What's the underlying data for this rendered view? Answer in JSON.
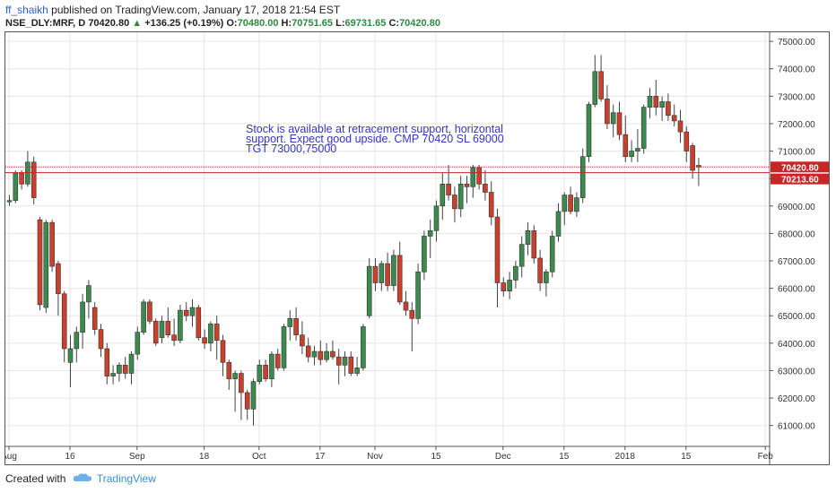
{
  "publish": {
    "author": "ff_shaikh",
    "text": "published on TradingView.com, January 17, 2018 21:54 EST"
  },
  "symbol": {
    "name": "NSE_DLY:MRF, D",
    "price": "70420.80",
    "change": "+136.25 (+0.19%)",
    "o_label": "O:",
    "o": "70480.00",
    "h_label": "H:",
    "h": "70751.65",
    "l_label": "L:",
    "l": "69731.65",
    "c_label": "C:",
    "c": "70420.80"
  },
  "footer": {
    "created_with": "Created with",
    "brand": "TradingView"
  },
  "colors": {
    "up": "#3d8a4e",
    "down": "#c9402c",
    "grid": "#e6e6e6",
    "annotation": "#3535c8",
    "price_line": "#c62828"
  },
  "chart_data": {
    "type": "candlestick",
    "ylim": [
      60500,
      75200
    ],
    "y_ticks": [
      "75000.00",
      "74000.00",
      "73000.00",
      "72000.00",
      "71000.00",
      "70000.00",
      "69000.00",
      "68000.00",
      "67000.00",
      "66000.00",
      "65000.00",
      "64000.00",
      "63000.00",
      "62000.00",
      "61000.00"
    ],
    "x_ticks": [
      {
        "label": "Aug",
        "bar": 0
      },
      {
        "label": "16",
        "bar": 10
      },
      {
        "label": "Sep",
        "bar": 21
      },
      {
        "label": "18",
        "bar": 32
      },
      {
        "label": "Oct",
        "bar": 41
      },
      {
        "label": "17",
        "bar": 51
      },
      {
        "label": "Nov",
        "bar": 60
      },
      {
        "label": "15",
        "bar": 70
      },
      {
        "label": "Dec",
        "bar": 81
      },
      {
        "label": "15",
        "bar": 91
      },
      {
        "label": "2018",
        "bar": 101
      },
      {
        "label": "15",
        "bar": 111
      },
      {
        "label": "Feb",
        "bar": 124
      }
    ],
    "x_bars_total": 126,
    "annotation": "Stock is available at retracement support, horizontal support. Expect good upside. CMP 70420 SL 69000 TGT 73000,75000",
    "price_tags": [
      {
        "label": "70420.80",
        "value": 70420.8
      },
      {
        "label": "70213.60",
        "value": 70213.6
      }
    ],
    "candles": [
      [
        69150,
        69400,
        69000,
        69200
      ],
      [
        69200,
        70300,
        69100,
        70200
      ],
      [
        70200,
        70300,
        69600,
        69800
      ],
      [
        69800,
        71000,
        69700,
        70600
      ],
      [
        70600,
        70800,
        69050,
        69300
      ],
      [
        68500,
        68600,
        65200,
        65400
      ],
      [
        65300,
        68500,
        65100,
        68400
      ],
      [
        68400,
        68500,
        66600,
        66800
      ],
      [
        66900,
        67000,
        65000,
        65800
      ],
      [
        65800,
        65900,
        63300,
        63800
      ],
      [
        63300,
        64300,
        62400,
        63800
      ],
      [
        63800,
        64600,
        63300,
        64400
      ],
      [
        64400,
        65800,
        63800,
        65500
      ],
      [
        65500,
        66300,
        64900,
        66100
      ],
      [
        65300,
        65500,
        64300,
        64500
      ],
      [
        64500,
        64700,
        63500,
        63800
      ],
      [
        63800,
        64000,
        62500,
        62800
      ],
      [
        62800,
        63200,
        62500,
        62900
      ],
      [
        62900,
        63300,
        62600,
        63200
      ],
      [
        63200,
        63500,
        62700,
        62900
      ],
      [
        62900,
        63700,
        62500,
        63600
      ],
      [
        63600,
        64600,
        63400,
        64400
      ],
      [
        64400,
        65600,
        64300,
        65500
      ],
      [
        65500,
        65600,
        64700,
        64800
      ],
      [
        64800,
        64900,
        63900,
        64000
      ],
      [
        64200,
        65000,
        64000,
        64800
      ],
      [
        64800,
        65300,
        64200,
        64300
      ],
      [
        64300,
        64900,
        63900,
        64100
      ],
      [
        64100,
        65400,
        64000,
        65200
      ],
      [
        65200,
        65500,
        64800,
        65000
      ],
      [
        65000,
        65600,
        64600,
        65300
      ],
      [
        65300,
        65400,
        64100,
        64200
      ],
      [
        64200,
        64500,
        63800,
        64000
      ],
      [
        64000,
        64800,
        63700,
        64700
      ],
      [
        64700,
        65000,
        63400,
        64100
      ],
      [
        64100,
        64300,
        62800,
        63300
      ],
      [
        63300,
        63400,
        62300,
        62700
      ],
      [
        62700,
        63000,
        61500,
        62900
      ],
      [
        62900,
        63000,
        61200,
        62200
      ],
      [
        62200,
        62300,
        61200,
        61600
      ],
      [
        61600,
        62700,
        61000,
        62600
      ],
      [
        62600,
        63400,
        62500,
        63200
      ],
      [
        63200,
        63400,
        62600,
        62700
      ],
      [
        62700,
        63700,
        62400,
        63600
      ],
      [
        63600,
        63800,
        63000,
        63100
      ],
      [
        63100,
        64700,
        63000,
        64600
      ],
      [
        64600,
        65200,
        64100,
        64900
      ],
      [
        64900,
        65300,
        64100,
        64300
      ],
      [
        64300,
        64800,
        63600,
        63900
      ],
      [
        63900,
        64200,
        63300,
        63500
      ],
      [
        63500,
        63900,
        63200,
        63700
      ],
      [
        63700,
        64100,
        63200,
        63400
      ],
      [
        63400,
        64000,
        63300,
        63700
      ],
      [
        63700,
        64100,
        63400,
        63500
      ],
      [
        63500,
        63800,
        62500,
        63200
      ],
      [
        63200,
        63700,
        62800,
        63500
      ],
      [
        63500,
        63700,
        62800,
        62900
      ],
      [
        62900,
        63500,
        62800,
        63100
      ],
      [
        63100,
        64700,
        63000,
        64600
      ],
      [
        65000,
        67100,
        64900,
        66800
      ],
      [
        66800,
        67100,
        65900,
        66200
      ],
      [
        66200,
        67000,
        65900,
        66900
      ],
      [
        66900,
        67300,
        65900,
        66100
      ],
      [
        66100,
        67400,
        65900,
        67200
      ],
      [
        67200,
        67700,
        65400,
        65500
      ],
      [
        65500,
        65900,
        65000,
        65200
      ],
      [
        65200,
        65500,
        63700,
        64900
      ],
      [
        64900,
        66900,
        64700,
        66600
      ],
      [
        66600,
        68100,
        66300,
        67900
      ],
      [
        67900,
        68500,
        67100,
        68100
      ],
      [
        68100,
        69200,
        67700,
        69000
      ],
      [
        69000,
        70200,
        68500,
        69800
      ],
      [
        69800,
        70500,
        69200,
        69400
      ],
      [
        69400,
        69700,
        68400,
        68900
      ],
      [
        68900,
        70100,
        68600,
        69800
      ],
      [
        69800,
        70100,
        69100,
        69700
      ],
      [
        69700,
        70500,
        69300,
        70400
      ],
      [
        70400,
        70500,
        69600,
        69800
      ],
      [
        69800,
        70300,
        69200,
        69500
      ],
      [
        69500,
        69900,
        68300,
        68600
      ],
      [
        68600,
        68900,
        65300,
        66200
      ],
      [
        66200,
        66400,
        65700,
        65900
      ],
      [
        65900,
        66600,
        65600,
        66300
      ],
      [
        66300,
        67000,
        66000,
        66800
      ],
      [
        66800,
        67900,
        66400,
        67600
      ],
      [
        67600,
        68400,
        67200,
        68100
      ],
      [
        68100,
        68300,
        66900,
        67100
      ],
      [
        67100,
        67400,
        65900,
        66200
      ],
      [
        66200,
        66700,
        65700,
        66600
      ],
      [
        66600,
        68100,
        66400,
        67900
      ],
      [
        67900,
        69100,
        67700,
        68800
      ],
      [
        68800,
        69500,
        68300,
        69400
      ],
      [
        69400,
        69700,
        68700,
        68800
      ],
      [
        68800,
        69500,
        68600,
        69300
      ],
      [
        69300,
        71100,
        69100,
        70800
      ],
      [
        70800,
        72800,
        70600,
        72700
      ],
      [
        72700,
        74500,
        72600,
        73900
      ],
      [
        73900,
        74500,
        72800,
        72900
      ],
      [
        72900,
        73400,
        71800,
        72000
      ],
      [
        72000,
        72700,
        71500,
        72400
      ],
      [
        72400,
        72800,
        71400,
        71600
      ],
      [
        71600,
        72300,
        70600,
        70800
      ],
      [
        70800,
        71400,
        70600,
        71000
      ],
      [
        71000,
        71800,
        70600,
        71100
      ],
      [
        71100,
        72700,
        70900,
        72600
      ],
      [
        72600,
        73300,
        72200,
        73000
      ],
      [
        73000,
        73600,
        72300,
        72600
      ],
      [
        72600,
        73000,
        72100,
        72800
      ],
      [
        72800,
        73100,
        72100,
        72300
      ],
      [
        72300,
        72700,
        71900,
        72100
      ],
      [
        72100,
        72500,
        71300,
        71700
      ],
      [
        71700,
        71900,
        70600,
        71000
      ],
      [
        71200,
        71300,
        70000,
        70300
      ],
      [
        70480,
        70751,
        69731,
        70420
      ]
    ]
  }
}
